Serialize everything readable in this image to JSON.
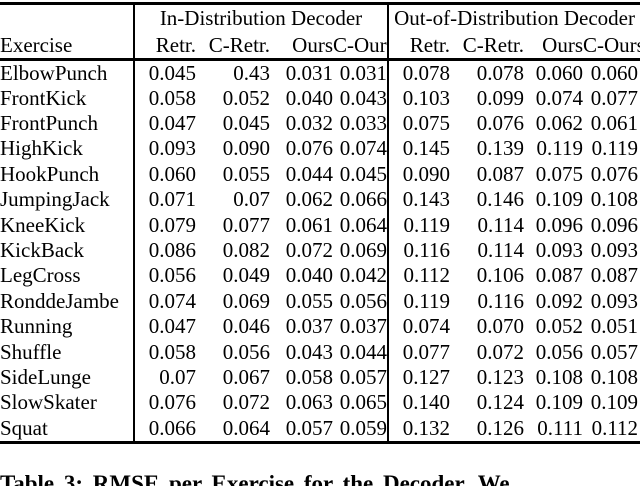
{
  "colors": {
    "text": "#000000",
    "background": "#ffffff",
    "rule": "#000000"
  },
  "table": {
    "exercise_header": "Exercise",
    "groups": [
      {
        "label": "In-Distribution Decoder"
      },
      {
        "label": "Out-of-Distribution Decoder"
      }
    ],
    "sub_headers": [
      "Retr.",
      "C-Retr.",
      "Ours",
      "C-Ours"
    ],
    "rows": [
      {
        "exercise": "ElbowPunch",
        "in_dist": [
          "0.045",
          "0.43",
          "0.031",
          "0.031"
        ],
        "in_bold": 3,
        "out_dist": [
          "0.078",
          "0.078",
          "0.060",
          "0.060"
        ],
        "out_bold": 3
      },
      {
        "exercise": "FrontKick",
        "in_dist": [
          "0.058",
          "0.052",
          "0.040",
          "0.043"
        ],
        "in_bold": 2,
        "out_dist": [
          "0.103",
          "0.099",
          "0.074",
          "0.077"
        ],
        "out_bold": 2
      },
      {
        "exercise": "FrontPunch",
        "in_dist": [
          "0.047",
          "0.045",
          "0.032",
          "0.033"
        ],
        "in_bold": 2,
        "out_dist": [
          "0.075",
          "0.076",
          "0.062",
          "0.061"
        ],
        "out_bold": 3
      },
      {
        "exercise": "HighKick",
        "in_dist": [
          "0.093",
          "0.090",
          "0.076",
          "0.074"
        ],
        "in_bold": 3,
        "out_dist": [
          "0.145",
          "0.139",
          "0.119",
          "0.119"
        ],
        "out_bold": 3
      },
      {
        "exercise": "HookPunch",
        "in_dist": [
          "0.060",
          "0.055",
          "0.044",
          "0.045"
        ],
        "in_bold": 2,
        "out_dist": [
          "0.090",
          "0.087",
          "0.075",
          "0.076"
        ],
        "out_bold": 2
      },
      {
        "exercise": "JumpingJack",
        "in_dist": [
          "0.071",
          "0.07",
          "0.062",
          "0.066"
        ],
        "in_bold": 2,
        "out_dist": [
          "0.143",
          "0.146",
          "0.109",
          "0.108"
        ],
        "out_bold": 3
      },
      {
        "exercise": "KneeKick",
        "in_dist": [
          "0.079",
          "0.077",
          "0.061",
          "0.064"
        ],
        "in_bold": 2,
        "out_dist": [
          "0.119",
          "0.114",
          "0.096",
          "0.096"
        ],
        "out_bold": 3
      },
      {
        "exercise": "KickBack",
        "in_dist": [
          "0.086",
          "0.082",
          "0.072",
          "0.069"
        ],
        "in_bold": 3,
        "out_dist": [
          "0.116",
          "0.114",
          "0.093",
          "0.093"
        ],
        "out_bold": 3
      },
      {
        "exercise": "LegCross",
        "in_dist": [
          "0.056",
          "0.049",
          "0.040",
          "0.042"
        ],
        "in_bold": 2,
        "out_dist": [
          "0.112",
          "0.106",
          "0.087",
          "0.087"
        ],
        "out_bold": 3
      },
      {
        "exercise": "RonddeJambe",
        "in_dist": [
          "0.074",
          "0.069",
          "0.055",
          "0.056"
        ],
        "in_bold": 2,
        "out_dist": [
          "0.119",
          "0.116",
          "0.092",
          "0.093"
        ],
        "out_bold": 2
      },
      {
        "exercise": "Running",
        "in_dist": [
          "0.047",
          "0.046",
          "0.037",
          "0.037"
        ],
        "in_bold": 3,
        "out_dist": [
          "0.074",
          "0.070",
          "0.052",
          "0.051"
        ],
        "out_bold": 3
      },
      {
        "exercise": "Shuffle",
        "in_dist": [
          "0.058",
          "0.056",
          "0.043",
          "0.044"
        ],
        "in_bold": 2,
        "out_dist": [
          "0.077",
          "0.072",
          "0.056",
          "0.057"
        ],
        "out_bold": 2
      },
      {
        "exercise": "SideLunge",
        "in_dist": [
          "0.07",
          "0.067",
          "0.058",
          "0.057"
        ],
        "in_bold": 3,
        "out_dist": [
          "0.127",
          "0.123",
          "0.108",
          "0.108"
        ],
        "out_bold": 3
      },
      {
        "exercise": "SlowSkater",
        "in_dist": [
          "0.076",
          "0.072",
          "0.063",
          "0.065"
        ],
        "in_bold": 2,
        "out_dist": [
          "0.140",
          "0.124",
          "0.109",
          "0.109"
        ],
        "out_bold": 3
      },
      {
        "exercise": "Squat",
        "in_dist": [
          "0.066",
          "0.064",
          "0.057",
          "0.059"
        ],
        "in_bold": 2,
        "out_dist": [
          "0.132",
          "0.126",
          "0.111",
          "0.112"
        ],
        "out_bold": 2
      }
    ]
  },
  "caption": "Table 3: RMSE per Exercise for the Decoder. We"
}
